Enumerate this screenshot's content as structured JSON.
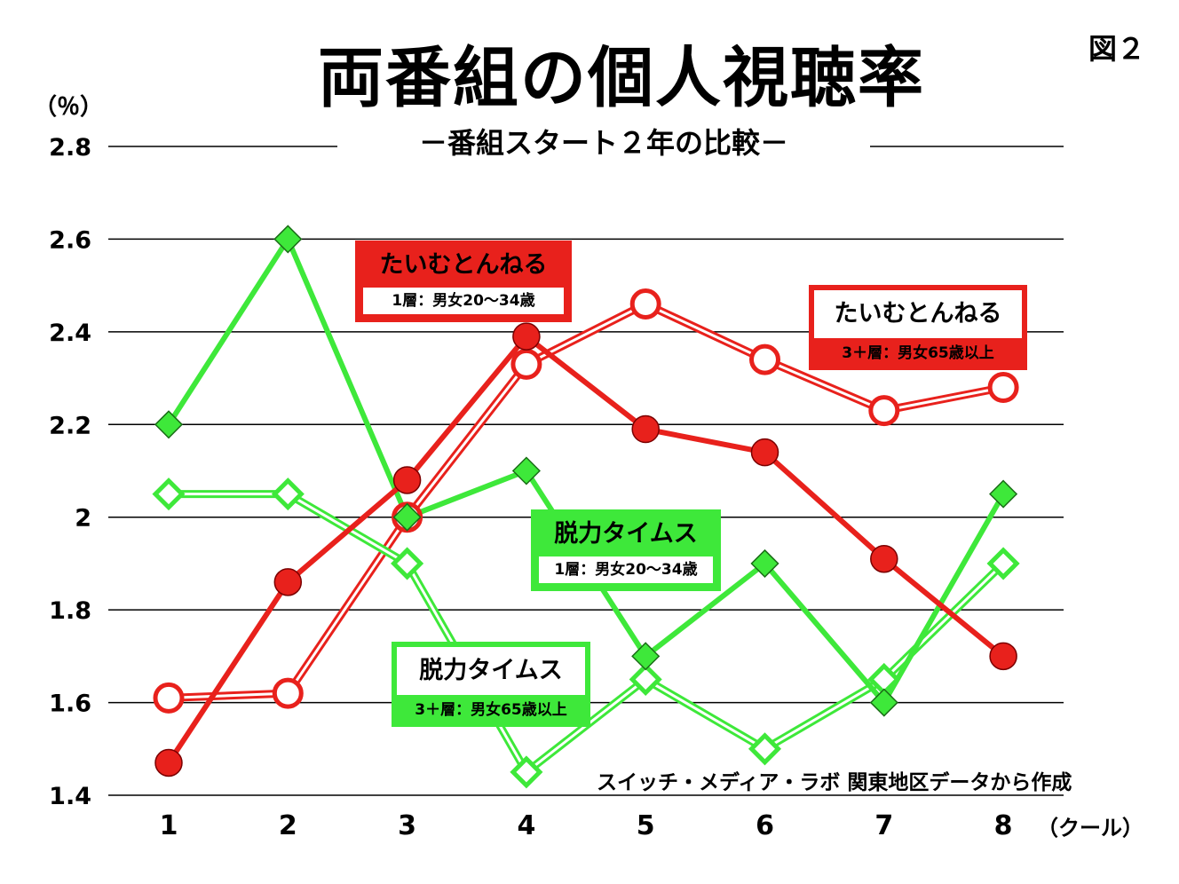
{
  "figure_label": "図２",
  "chart_data": {
    "type": "line",
    "title": "両番組の個人視聴率",
    "subtitle": "－番組スタート２年の比較－",
    "ylabel": "（％）",
    "xlabel": "（クール）",
    "categories": [
      "1",
      "2",
      "3",
      "4",
      "5",
      "6",
      "7",
      "8"
    ],
    "y_ticks": [
      "1.4",
      "1.6",
      "1.8",
      "2",
      "2.2",
      "2.4",
      "2.6",
      "2.8"
    ],
    "ylim": [
      1.4,
      2.8
    ],
    "grid": true,
    "source_note": "スイッチ・メディア・ラボ 関東地区データから作成",
    "series": [
      {
        "name": "たいむとんねる 1層：男女20～34歳",
        "color": "#e8211c",
        "marker": "filled-circle",
        "values": [
          1.47,
          1.86,
          2.08,
          2.39,
          2.19,
          2.14,
          1.91,
          1.7
        ]
      },
      {
        "name": "たいむとんねる 3＋層：男女65歳以上",
        "color": "#e8211c",
        "marker": "open-circle",
        "values": [
          1.61,
          1.62,
          2.0,
          2.33,
          2.46,
          2.34,
          2.23,
          2.28
        ]
      },
      {
        "name": "脱力タイムズ 1層：男女20～34歳",
        "color": "#3ee83a",
        "marker": "filled-diamond",
        "values": [
          2.2,
          2.6,
          2.0,
          2.1,
          1.7,
          1.9,
          1.6,
          2.05
        ]
      },
      {
        "name": "脱力タイムズ 3＋層：男女65歳以上",
        "color": "#3ee83a",
        "marker": "open-diamond",
        "values": [
          2.05,
          2.05,
          1.9,
          1.45,
          1.65,
          1.5,
          1.65,
          1.9
        ]
      }
    ]
  },
  "callouts": {
    "tt_young": {
      "title": "たいむとんねる",
      "sub": "1層：男女20～34歳"
    },
    "tt_old": {
      "title": "たいむとんねる",
      "sub": "3＋層：男女65歳以上"
    },
    "dt_young": {
      "title": "脱力タイムス",
      "sub": "1層：男女20～34歳"
    },
    "dt_old": {
      "title": "脱力タイムス",
      "sub": "3＋層：男女65歳以上"
    }
  }
}
